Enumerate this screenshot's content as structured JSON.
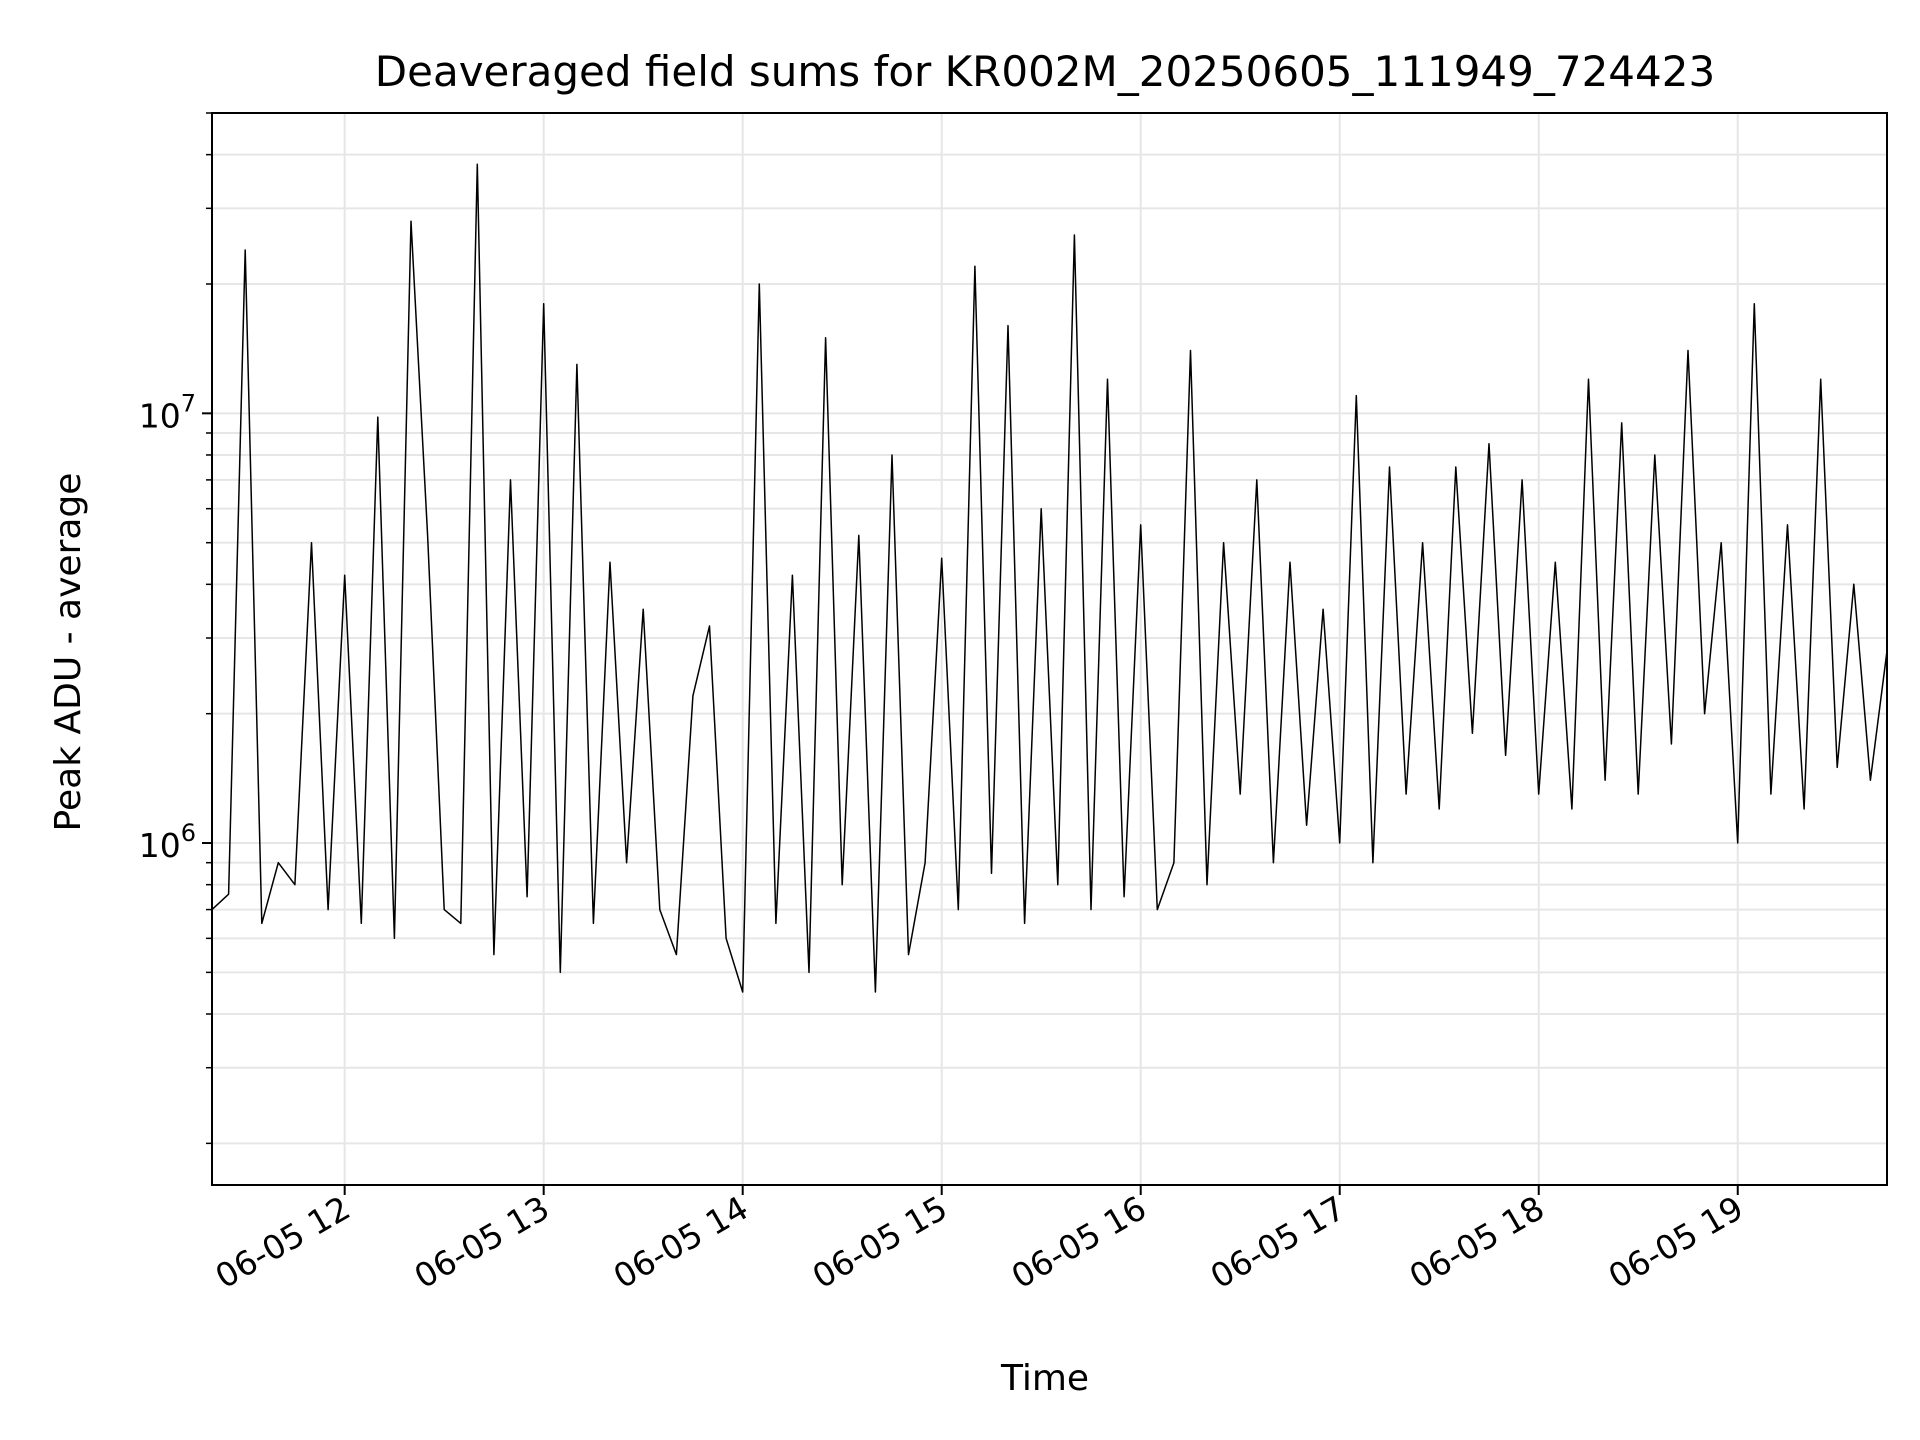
{
  "chart_data": {
    "type": "line",
    "title": "Deaveraged field sums for KR002M_20250605_111949_724423",
    "xlabel": "Time",
    "ylabel": "Peak ADU - average",
    "yscale": "log",
    "grid": true,
    "x_tick_labels": [
      "06-05 12",
      "06-05 13",
      "06-05 14",
      "06-05 15",
      "06-05 16",
      "06-05 17",
      "06-05 18",
      "06-05 19"
    ],
    "y_tick_labels": [
      {
        "base": "10",
        "exp": "6",
        "value": 1000000
      },
      {
        "base": "10",
        "exp": "7",
        "value": 10000000
      }
    ],
    "xlim": [
      "06-05 11:20",
      "06-05 19:45"
    ],
    "ylim": [
      160000,
      50000000
    ],
    "line_color": "#000000",
    "grid_color": "#e6e6e6",
    "series": [
      {
        "x": [
          "06-05 11:20",
          "06-05 11:25",
          "06-05 11:30",
          "06-05 11:35",
          "06-05 11:40",
          "06-05 11:45",
          "06-05 11:50",
          "06-05 11:55",
          "06-05 12:00",
          "06-05 12:05",
          "06-05 12:10",
          "06-05 12:15",
          "06-05 12:20",
          "06-05 12:25",
          "06-05 12:30",
          "06-05 12:35",
          "06-05 12:40",
          "06-05 12:45",
          "06-05 12:50",
          "06-05 12:55",
          "06-05 13:00",
          "06-05 13:05",
          "06-05 13:10",
          "06-05 13:15",
          "06-05 13:20",
          "06-05 13:25",
          "06-05 13:30",
          "06-05 13:35",
          "06-05 13:40",
          "06-05 13:45",
          "06-05 13:50",
          "06-05 13:55",
          "06-05 14:00",
          "06-05 14:05",
          "06-05 14:10",
          "06-05 14:15",
          "06-05 14:20",
          "06-05 14:25",
          "06-05 14:30",
          "06-05 14:35",
          "06-05 14:40",
          "06-05 14:45",
          "06-05 14:50",
          "06-05 14:55",
          "06-05 15:00",
          "06-05 15:05",
          "06-05 15:10",
          "06-05 15:15",
          "06-05 15:20",
          "06-05 15:25",
          "06-05 15:30",
          "06-05 15:35",
          "06-05 15:40",
          "06-05 15:45",
          "06-05 15:50",
          "06-05 15:55",
          "06-05 16:00",
          "06-05 16:05",
          "06-05 16:10",
          "06-05 16:15",
          "06-05 16:20",
          "06-05 16:25",
          "06-05 16:30",
          "06-05 16:35",
          "06-05 16:40",
          "06-05 16:45",
          "06-05 16:50",
          "06-05 16:55",
          "06-05 17:00",
          "06-05 17:05",
          "06-05 17:10",
          "06-05 17:15",
          "06-05 17:20",
          "06-05 17:25",
          "06-05 17:30",
          "06-05 17:35",
          "06-05 17:40",
          "06-05 17:45",
          "06-05 17:50",
          "06-05 17:55",
          "06-05 18:00",
          "06-05 18:05",
          "06-05 18:10",
          "06-05 18:15",
          "06-05 18:20",
          "06-05 18:25",
          "06-05 18:30",
          "06-05 18:35",
          "06-05 18:40",
          "06-05 18:45",
          "06-05 18:50",
          "06-05 18:55",
          "06-05 19:00",
          "06-05 19:05",
          "06-05 19:10",
          "06-05 19:15",
          "06-05 19:20",
          "06-05 19:25",
          "06-05 19:30",
          "06-05 19:35",
          "06-05 19:40",
          "06-05 19:45"
        ],
        "values": [
          700000,
          760000,
          24000000,
          650000,
          900000,
          800000,
          5000000,
          700000,
          4200000,
          650000,
          9800000,
          600000,
          28000000,
          5200000,
          700000,
          650000,
          38000000,
          550000,
          7000000,
          750000,
          18000000,
          500000,
          13000000,
          650000,
          4500000,
          900000,
          3500000,
          700000,
          550000,
          2200000,
          3200000,
          600000,
          450000,
          20000000,
          650000,
          4200000,
          500000,
          15000000,
          800000,
          5200000,
          450000,
          8000000,
          550000,
          900000,
          4600000,
          700000,
          22000000,
          850000,
          16000000,
          650000,
          6000000,
          800000,
          26000000,
          700000,
          12000000,
          750000,
          5500000,
          700000,
          900000,
          14000000,
          800000,
          5000000,
          1300000,
          7000000,
          900000,
          4500000,
          1100000,
          3500000,
          1000000,
          11000000,
          900000,
          7500000,
          1300000,
          5000000,
          1200000,
          7500000,
          1800000,
          8500000,
          1600000,
          7000000,
          1300000,
          4500000,
          1200000,
          12000000,
          1400000,
          9500000,
          1300000,
          8000000,
          1700000,
          14000000,
          2000000,
          5000000,
          1000000,
          18000000,
          1300000,
          5500000,
          1200000,
          12000000,
          1500000,
          4000000,
          1400000,
          2800000
        ]
      }
    ]
  }
}
